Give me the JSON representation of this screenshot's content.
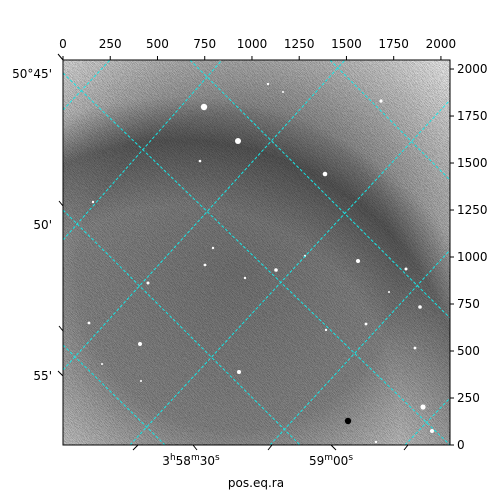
{
  "figure": {
    "xlabel": "pos.eq.ra",
    "pixel_axis_top": {
      "range": [
        0,
        2048
      ],
      "ticks": [
        0,
        250,
        500,
        750,
        1000,
        1250,
        1500,
        1750,
        2000
      ],
      "labels": [
        "0",
        "250",
        "500",
        "750",
        "1000",
        "1250",
        "1500",
        "1750",
        "2000"
      ]
    },
    "pixel_axis_right": {
      "range": [
        0,
        2048
      ],
      "ticks": [
        0,
        250,
        500,
        750,
        1000,
        1250,
        1500,
        1750,
        2000
      ],
      "labels": [
        "0",
        "250",
        "500",
        "750",
        "1000",
        "1250",
        "1500",
        "1750",
        "2000"
      ]
    },
    "dec_axis_left": {
      "labels": [
        "50°45'",
        "50'",
        "55'"
      ]
    },
    "ra_axis_bottom": {
      "labels": [
        {
          "main": "3",
          "sup1": "h",
          "mid": "58",
          "sup2": "m",
          "tail": "30",
          "sup3": "s"
        },
        {
          "main": "59",
          "sup1": "m",
          "mid": "00",
          "sup2": "s",
          "tail": "",
          "sup3": ""
        }
      ]
    },
    "grid_color": "#17e6e6",
    "background_sky": "#9a9a9a",
    "frame_color": "#000000"
  }
}
